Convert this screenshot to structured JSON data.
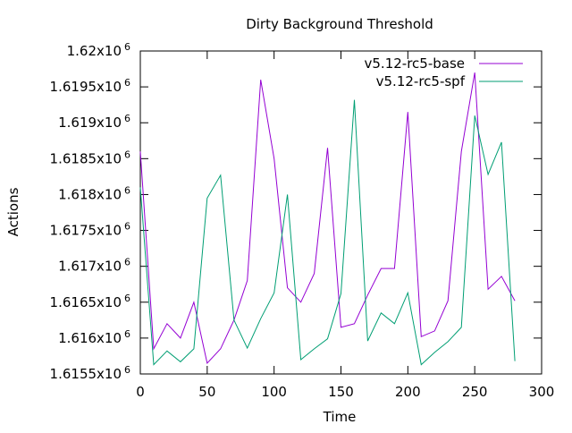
{
  "chart_data": {
    "type": "line",
    "title": "Dirty Background Threshold",
    "xlabel": "Time",
    "ylabel": "Actions",
    "xlim": [
      0,
      300
    ],
    "ylim": [
      1615500,
      1620000
    ],
    "x_ticks": [
      {
        "value": 0,
        "label": "0"
      },
      {
        "value": 50,
        "label": "50"
      },
      {
        "value": 100,
        "label": "100"
      },
      {
        "value": 150,
        "label": "150"
      },
      {
        "value": 200,
        "label": "200"
      },
      {
        "value": 250,
        "label": "250"
      },
      {
        "value": 300,
        "label": "300"
      }
    ],
    "y_ticks": [
      {
        "value": 1615500,
        "base": "1.6155x10",
        "exp": "6"
      },
      {
        "value": 1616000,
        "base": "1.616x10",
        "exp": "6"
      },
      {
        "value": 1616500,
        "base": "1.6165x10",
        "exp": "6"
      },
      {
        "value": 1617000,
        "base": "1.617x10",
        "exp": "6"
      },
      {
        "value": 1617500,
        "base": "1.6175x10",
        "exp": "6"
      },
      {
        "value": 1618000,
        "base": "1.618x10",
        "exp": "6"
      },
      {
        "value": 1618500,
        "base": "1.6185x10",
        "exp": "6"
      },
      {
        "value": 1619000,
        "base": "1.619x10",
        "exp": "6"
      },
      {
        "value": 1619500,
        "base": "1.6195x10",
        "exp": "6"
      },
      {
        "value": 1620000,
        "base": "1.62x10",
        "exp": "6"
      }
    ],
    "legend_position": "top-right",
    "grid": false,
    "x": [
      0,
      10,
      20,
      30,
      40,
      50,
      60,
      70,
      80,
      90,
      100,
      110,
      120,
      130,
      140,
      150,
      160,
      170,
      180,
      190,
      200,
      210,
      220,
      230,
      240,
      250,
      260,
      270,
      280
    ],
    "series": [
      {
        "name": "v5.12-rc5-base",
        "color": "#9400d3",
        "values": [
          1618600,
          1615850,
          1616200,
          1616000,
          1616500,
          1615650,
          1615850,
          1616250,
          1616800,
          1619600,
          1618500,
          1616700,
          1616500,
          1616900,
          1618650,
          1616150,
          1616200,
          1616600,
          1616970,
          1616970,
          1619150,
          1616020,
          1616100,
          1616520,
          1618600,
          1619700,
          1616680,
          1616860,
          1616520
        ]
      },
      {
        "name": "v5.12-rc5-spf",
        "color": "#009e73",
        "values": [
          1618100,
          1615630,
          1615820,
          1615670,
          1615850,
          1617950,
          1618270,
          1616250,
          1615860,
          1616270,
          1616630,
          1618000,
          1615700,
          1615850,
          1615990,
          1616620,
          1619320,
          1615960,
          1616350,
          1616200,
          1616630,
          1615630,
          1615800,
          1615950,
          1616150,
          1619100,
          1618280,
          1618730,
          1615680
        ]
      }
    ]
  }
}
